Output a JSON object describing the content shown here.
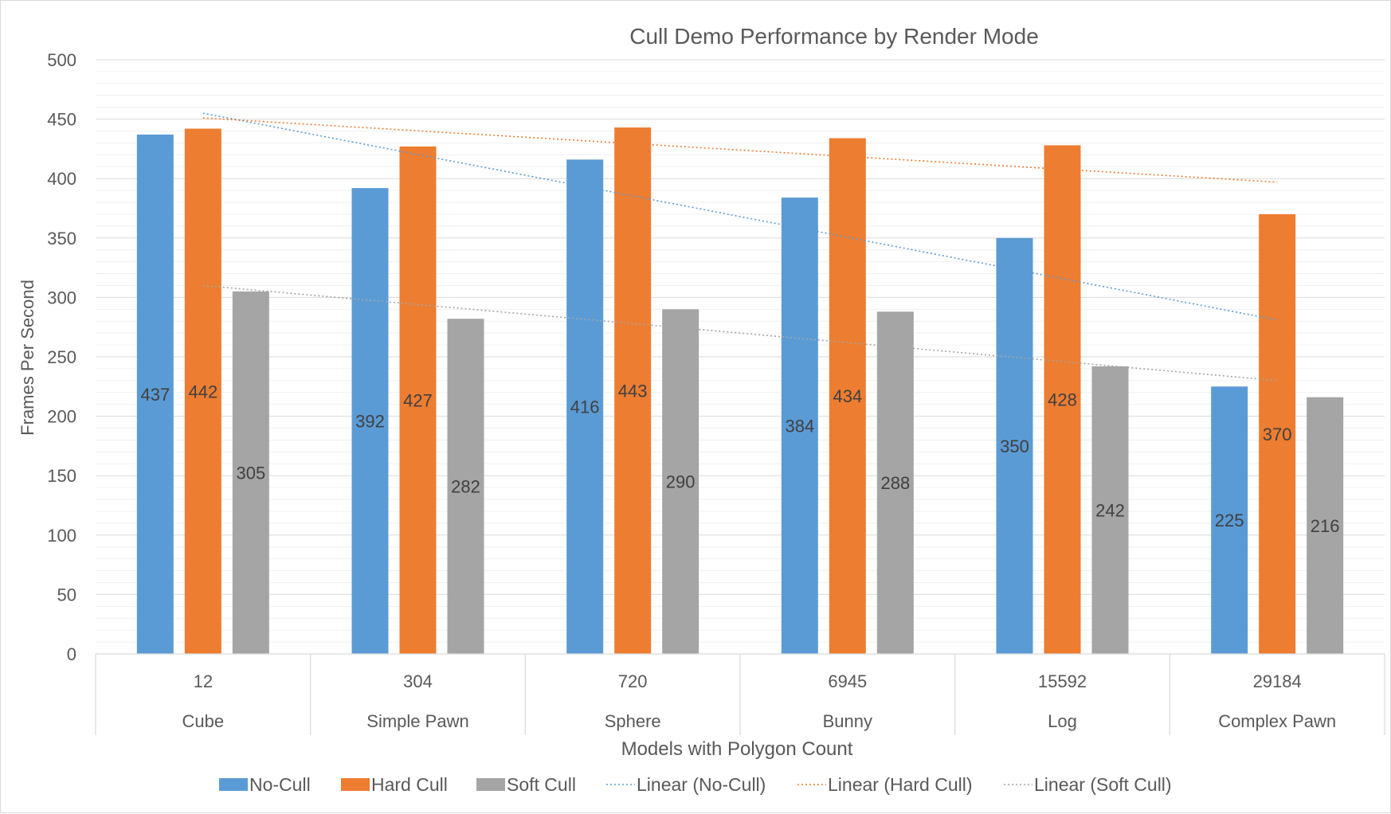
{
  "chart_data": {
    "type": "bar",
    "title": "Cull Demo Performance by Render Mode",
    "xlabel": "Models with Polygon Count",
    "ylabel": "Frames Per Second",
    "ylim": [
      0,
      500
    ],
    "yticks": [
      0,
      50,
      100,
      150,
      200,
      250,
      300,
      350,
      400,
      450,
      500
    ],
    "ytick_labels": [
      "0",
      "50",
      "100",
      "150",
      "200",
      "250",
      "300",
      "350",
      "400",
      "450",
      "500"
    ],
    "categories": [
      {
        "count": "12",
        "name": "Cube"
      },
      {
        "count": "304",
        "name": "Simple Pawn"
      },
      {
        "count": "720",
        "name": "Sphere"
      },
      {
        "count": "6945",
        "name": "Bunny"
      },
      {
        "count": "15592",
        "name": "Log"
      },
      {
        "count": "29184",
        "name": "Complex Pawn"
      }
    ],
    "series": [
      {
        "name": "No-Cull",
        "color": "#5b9bd5",
        "values": [
          437,
          392,
          416,
          384,
          350,
          225
        ]
      },
      {
        "name": "Hard Cull",
        "color": "#ed7d31",
        "values": [
          442,
          427,
          443,
          434,
          428,
          370
        ]
      },
      {
        "name": "Soft Cull",
        "color": "#a5a5a5",
        "values": [
          305,
          282,
          290,
          288,
          242,
          216
        ]
      }
    ],
    "trendlines": [
      {
        "name": "Linear (No-Cull)",
        "series": "No-Cull",
        "color": "#5b9bd5",
        "start": 455,
        "end": 281
      },
      {
        "name": "Linear (Hard Cull)",
        "series": "Hard Cull",
        "color": "#ed7d31",
        "start": 451,
        "end": 397
      },
      {
        "name": "Linear (Soft Cull)",
        "series": "Soft Cull",
        "color": "#a5a5a5",
        "start": 310,
        "end": 230
      }
    ],
    "grid": true,
    "minor_grid": true,
    "data_labels": true,
    "legend_position": "bottom"
  }
}
